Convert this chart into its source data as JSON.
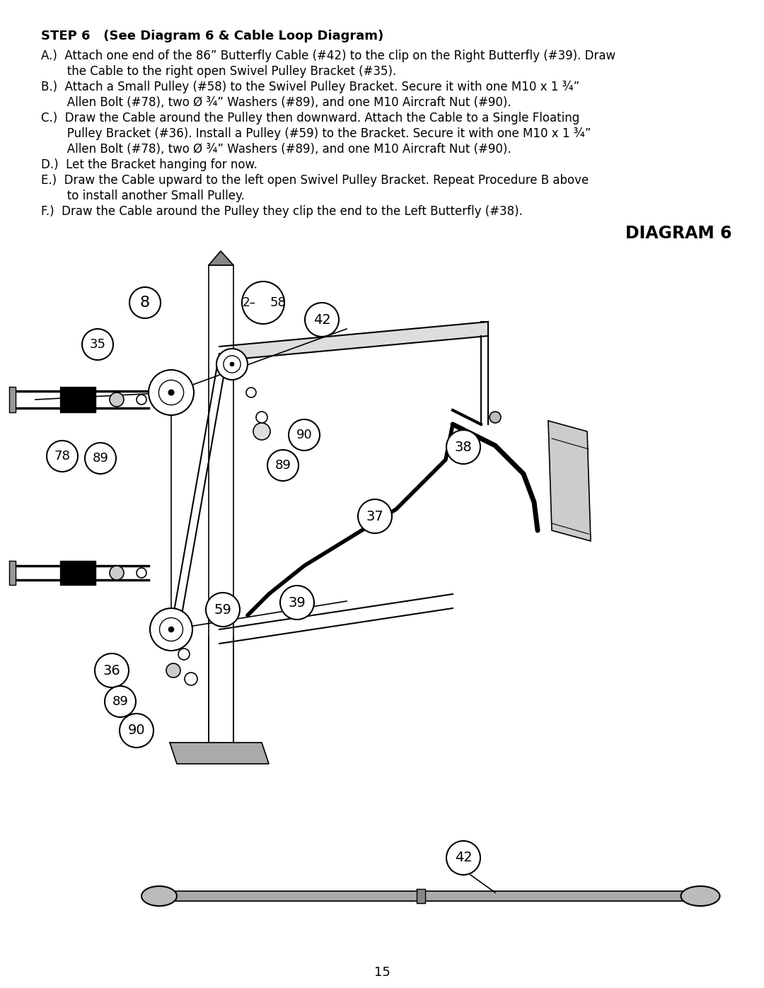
{
  "page_bg": "#ffffff",
  "title_bold": "STEP 6   (See Diagram 6 & Cable Loop Diagram)",
  "diagram_title": "DIAGRAM 6",
  "page_number": "15",
  "text_color": "#000000"
}
